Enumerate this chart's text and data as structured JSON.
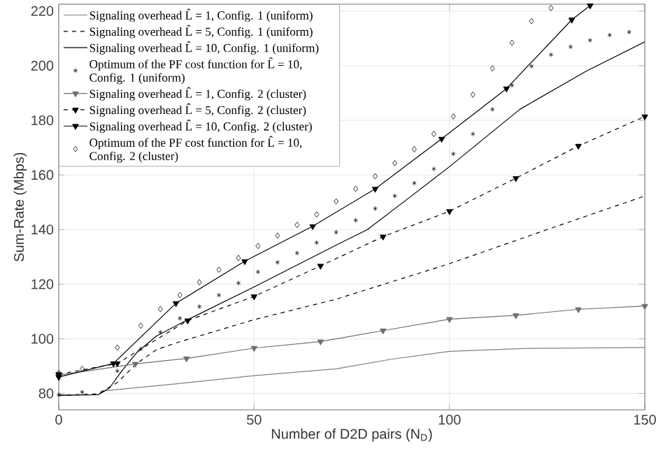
{
  "chart_data": {
    "type": "line",
    "xlabel": "Number of D2D pairs (N$_{D}$)",
    "ylabel": "Sum-Rate (Mbps)",
    "xlim": [
      0,
      150
    ],
    "ylim": [
      74,
      222.5
    ],
    "xticks": [
      0,
      50,
      100,
      150
    ],
    "yticks": [
      80,
      100,
      120,
      140,
      160,
      180,
      200,
      220
    ],
    "grid": true,
    "legend": "top left",
    "series": [
      {
        "name": "Signaling overhead L̂ = 1, Config. 1 (uniform)",
        "color": "#808080",
        "line_style": "solid",
        "marker": "none",
        "x": [
          0,
          10,
          12,
          30,
          50,
          71,
          85,
          100,
          120,
          150
        ],
        "values": [
          79.5,
          79.5,
          81,
          83.5,
          86.5,
          89,
          92.5,
          95.4,
          96.5,
          96.8
        ]
      },
      {
        "name": "Signaling overhead L̂ = 5, Config. 1 (uniform)",
        "color": "#000000",
        "line_style": "dashed",
        "marker": "none",
        "x": [
          0,
          10,
          15,
          20,
          25,
          30,
          50,
          71,
          100,
          125,
          150
        ],
        "values": [
          79.3,
          79.8,
          84,
          91,
          96,
          98.5,
          107,
          114.5,
          127.5,
          140,
          152.3
        ]
      },
      {
        "name": "Signaling overhead L̂ = 10, Config. 1 (uniform)",
        "color": "#000000",
        "line_style": "solid",
        "marker": "none",
        "x": [
          0,
          10,
          13,
          16,
          20,
          25,
          33,
          50,
          71,
          79,
          90,
          100,
          118,
          135,
          150
        ],
        "values": [
          79.3,
          79.5,
          82,
          88,
          95,
          101,
          107,
          119,
          134.3,
          140,
          152,
          163,
          184,
          198,
          208.7
        ]
      },
      {
        "name": "Optimum of the PF cost function for L̂ = 10, Config. 1 (uniform)",
        "type": "scatter",
        "color": "#000000",
        "marker": "cross",
        "x": [
          0,
          6,
          15,
          21,
          26,
          31,
          36,
          41,
          46,
          51,
          56,
          61,
          66,
          71,
          76,
          81,
          86,
          91,
          96,
          101,
          106,
          111,
          116,
          121,
          126,
          131,
          136,
          141,
          146
        ],
        "values": [
          79.5,
          80.5,
          88.2,
          96.3,
          102.4,
          107.5,
          111.8,
          116,
          120.4,
          124.5,
          128,
          131.4,
          135.2,
          139,
          143.4,
          147.7,
          152.3,
          157,
          162.2,
          167.7,
          175,
          184,
          192.8,
          199.8,
          204,
          206.9,
          209.3,
          211.2,
          212.3
        ]
      },
      {
        "name": "Signaling overhead L̂ = 1, Config. 2 (cluster)",
        "color": "#707070",
        "line_style": "solid",
        "marker": "triangle",
        "x": [
          0,
          19.6,
          32.7,
          50,
          67,
          83,
          100,
          117,
          133,
          150
        ],
        "values": [
          86.7,
          90.8,
          92.8,
          96.6,
          99,
          103,
          107.2,
          108.6,
          110.8,
          112
        ]
      },
      {
        "name": "Signaling overhead L̂ = 5, Config. 2 (cluster)",
        "color": "#000000",
        "line_style": "dashed",
        "marker": "triangle",
        "x": [
          0,
          15,
          33,
          50,
          67,
          83,
          100,
          117,
          133,
          150
        ],
        "values": [
          87,
          91,
          106.7,
          115.5,
          126.7,
          137.4,
          146.7,
          158.8,
          170.6,
          181.4
        ]
      },
      {
        "name": "Signaling overhead L̂ = 10, Config. 2 (cluster)",
        "color": "#000000",
        "line_style": "solid",
        "marker": "triangle",
        "x": [
          0,
          14,
          30,
          47.6,
          65,
          81,
          98,
          114.6,
          131.3,
          136
        ],
        "values": [
          86,
          91,
          113,
          128.4,
          141.2,
          154.9,
          173.2,
          191.6,
          216.8,
          222
        ]
      },
      {
        "name": "Optimum of the PF cost function for L̂ = 10, Config. 2 (cluster)",
        "type": "scatter",
        "color": "#000000",
        "marker": "diamond",
        "x": [
          0,
          6,
          15,
          21,
          26,
          31,
          36,
          41,
          46,
          51,
          56,
          61,
          66,
          71,
          76,
          81,
          86,
          91,
          96,
          101,
          106,
          111,
          116,
          121,
          126
        ],
        "values": [
          87.5,
          89,
          96.8,
          104.8,
          110.9,
          116,
          120.7,
          125.3,
          129.6,
          134,
          137.8,
          141.7,
          145.5,
          150.3,
          154.9,
          159.5,
          164.3,
          169.4,
          175,
          181.4,
          189.4,
          199,
          208.4,
          216.3,
          221.1
        ]
      }
    ]
  }
}
